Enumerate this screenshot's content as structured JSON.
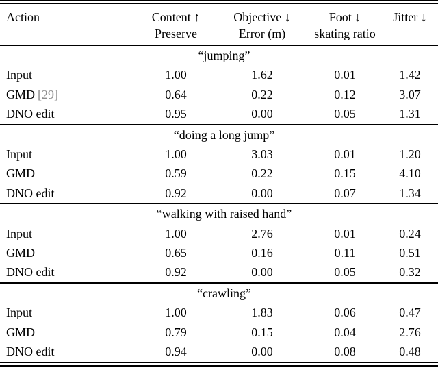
{
  "table": {
    "header": {
      "action": "Action",
      "columns": [
        {
          "line1": "Content ↑",
          "line2": "Preserve"
        },
        {
          "line1": "Objective ↓",
          "line2": "Error (m)"
        },
        {
          "line1": "Foot ↓",
          "line2": "skating ratio"
        },
        {
          "line1": "Jitter ↓",
          "line2": ""
        }
      ]
    },
    "groups": [
      {
        "action": "“jumping”",
        "rows": [
          {
            "label": "Input",
            "values": [
              "1.00",
              "1.62",
              "0.01",
              "1.42"
            ]
          },
          {
            "label": "GMD",
            "citation": "[29]",
            "values": [
              "0.64",
              "0.22",
              "0.12",
              "3.07"
            ]
          },
          {
            "label": "DNO edit",
            "values": [
              "0.95",
              "0.00",
              "0.05",
              "1.31"
            ]
          }
        ]
      },
      {
        "action": "“doing a long jump”",
        "rows": [
          {
            "label": "Input",
            "values": [
              "1.00",
              "3.03",
              "0.01",
              "1.20"
            ]
          },
          {
            "label": "GMD",
            "values": [
              "0.59",
              "0.22",
              "0.15",
              "4.10"
            ]
          },
          {
            "label": "DNO edit",
            "values": [
              "0.92",
              "0.00",
              "0.07",
              "1.34"
            ]
          }
        ]
      },
      {
        "action": "“walking with raised hand”",
        "rows": [
          {
            "label": "Input",
            "values": [
              "1.00",
              "2.76",
              "0.01",
              "0.24"
            ]
          },
          {
            "label": "GMD",
            "values": [
              "0.65",
              "0.16",
              "0.11",
              "0.51"
            ]
          },
          {
            "label": "DNO edit",
            "values": [
              "0.92",
              "0.00",
              "0.05",
              "0.32"
            ]
          }
        ]
      },
      {
        "action": "“crawling”",
        "rows": [
          {
            "label": "Input",
            "values": [
              "1.00",
              "1.83",
              "0.06",
              "0.47"
            ]
          },
          {
            "label": "GMD",
            "values": [
              "0.79",
              "0.15",
              "0.04",
              "2.76"
            ]
          },
          {
            "label": "DNO edit",
            "values": [
              "0.94",
              "0.00",
              "0.08",
              "0.48"
            ]
          }
        ]
      }
    ],
    "colors": {
      "text": "#000000",
      "rule": "#000000",
      "citation": "#8d8d8d",
      "background": "#ffffff"
    }
  }
}
